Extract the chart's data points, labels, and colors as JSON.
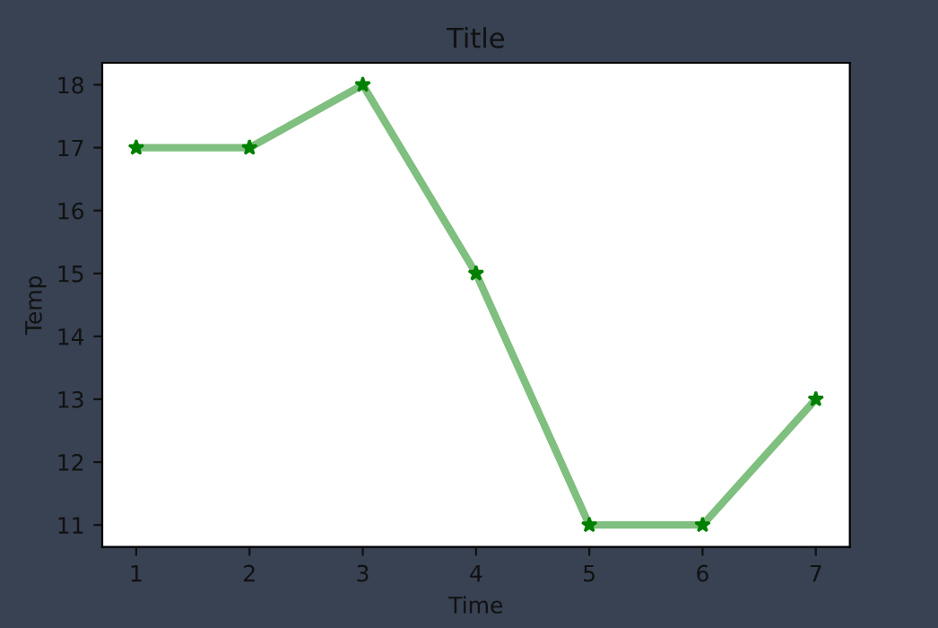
{
  "chart_data": {
    "type": "line",
    "title": "Title",
    "xlabel": "Time",
    "ylabel": "Temp",
    "x": [
      1,
      2,
      3,
      4,
      5,
      6,
      7
    ],
    "series": [
      {
        "color": "#008000",
        "values": [
          17,
          17,
          18,
          15,
          11,
          11,
          13
        ]
      }
    ],
    "xlim": [
      0.7,
      7.3
    ],
    "xticks": [
      1,
      2,
      3,
      4,
      5,
      6,
      7
    ],
    "ylim": [
      10.65,
      18.35
    ],
    "yticks": [
      11,
      12,
      13,
      14,
      15,
      16,
      17,
      18
    ],
    "marker": "star",
    "line_style": "solid",
    "grid": false,
    "legend": false
  }
}
